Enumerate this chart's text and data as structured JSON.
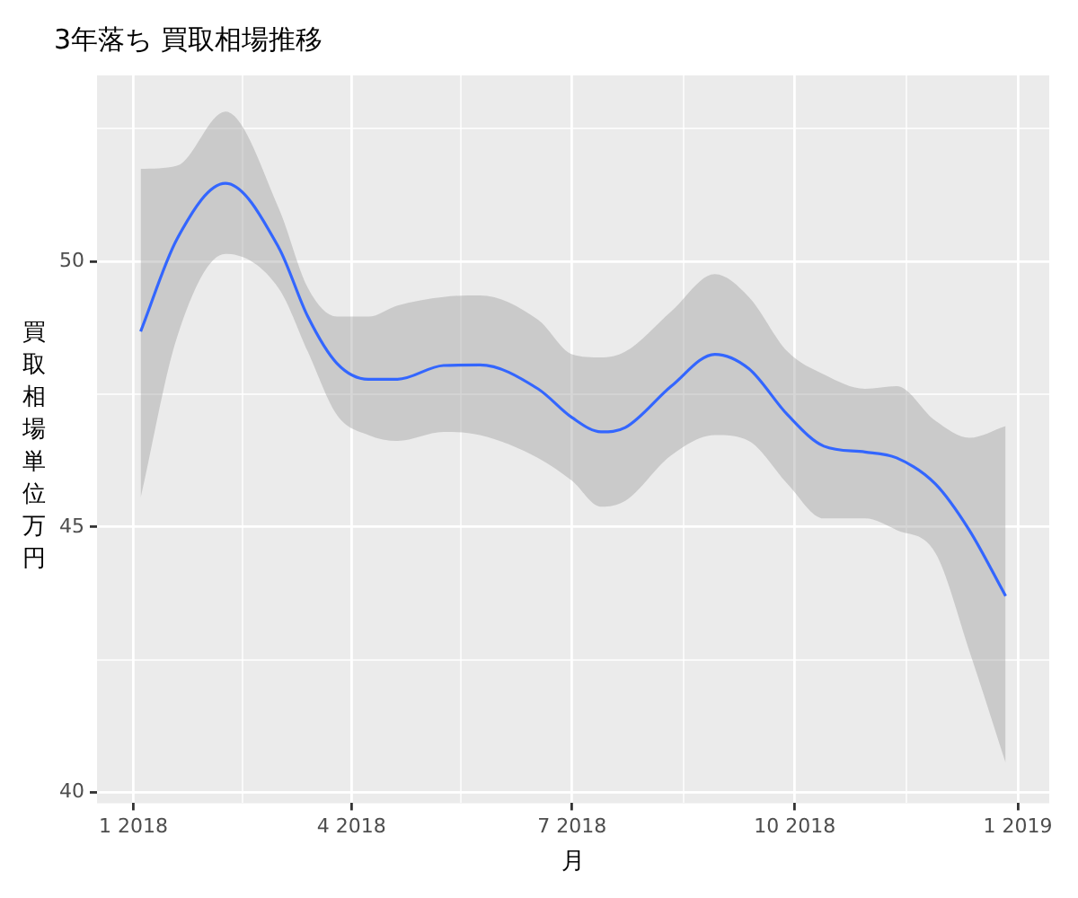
{
  "chart_data": {
    "type": "line",
    "title": "3年落ち 買取相場推移",
    "xlabel": "月",
    "ylabel": "買取相場単位万円",
    "x": [
      "2018-01-04",
      "2018-01-19",
      "2018-02-08",
      "2018-03-02",
      "2018-03-14",
      "2018-03-26",
      "2018-04-08",
      "2018-04-20",
      "2018-05-09",
      "2018-05-24",
      "2018-06-17",
      "2018-07-01",
      "2018-07-13",
      "2018-07-23",
      "2018-08-11",
      "2018-08-29",
      "2018-09-12",
      "2018-09-28",
      "2018-10-13",
      "2018-10-30",
      "2018-11-12",
      "2018-11-28",
      "2018-12-12",
      "2018-12-27"
    ],
    "series": [
      {
        "color": "#3366ff",
        "values": [
          48.68,
          50.42,
          51.47,
          50.26,
          48.96,
          48.08,
          47.78,
          47.78,
          48.04,
          48.05,
          47.6,
          47.06,
          46.79,
          46.87,
          47.65,
          48.25,
          47.98,
          47.11,
          46.52,
          46.41,
          46.3,
          45.81,
          44.94,
          43.7
        ],
        "lower": [
          45.55,
          48.57,
          50.14,
          49.49,
          48.3,
          47.11,
          46.73,
          46.62,
          46.79,
          46.73,
          46.3,
          45.87,
          45.38,
          45.49,
          46.35,
          46.73,
          46.62,
          45.81,
          45.16,
          45.16,
          44.94,
          44.51,
          42.67,
          40.56
        ],
        "upper": [
          51.74,
          51.8,
          52.82,
          51.0,
          49.5,
          48.96,
          48.96,
          49.17,
          49.33,
          49.36,
          48.9,
          48.25,
          48.19,
          48.3,
          49.06,
          49.76,
          49.33,
          48.3,
          47.87,
          47.6,
          47.65,
          47.0,
          46.68,
          46.9
        ]
      }
    ],
    "xlim": [
      "2017-12-17",
      "2019-01-14"
    ],
    "xticks": [
      {
        "value": "2018-01-01",
        "label": "1 2018"
      },
      {
        "value": "2018-02-15",
        "label": null
      },
      {
        "value": "2018-04-01",
        "label": "4 2018"
      },
      {
        "value": "2018-05-16",
        "label": null
      },
      {
        "value": "2018-07-01",
        "label": "7 2018"
      },
      {
        "value": "2018-08-16",
        "label": null
      },
      {
        "value": "2018-10-01",
        "label": "10 2018"
      },
      {
        "value": "2018-11-16",
        "label": null
      },
      {
        "value": "2019-01-01",
        "label": "1 2019"
      }
    ],
    "ylim": [
      39.8,
      53.5
    ],
    "yticks": [
      40,
      {
        "value": 42.5,
        "label": null
      },
      45,
      {
        "value": 47.5,
        "label": null
      },
      50,
      {
        "value": 52.5,
        "label": null
      }
    ],
    "grid": true,
    "legend": false,
    "marker": "none",
    "line_style": "solid"
  }
}
